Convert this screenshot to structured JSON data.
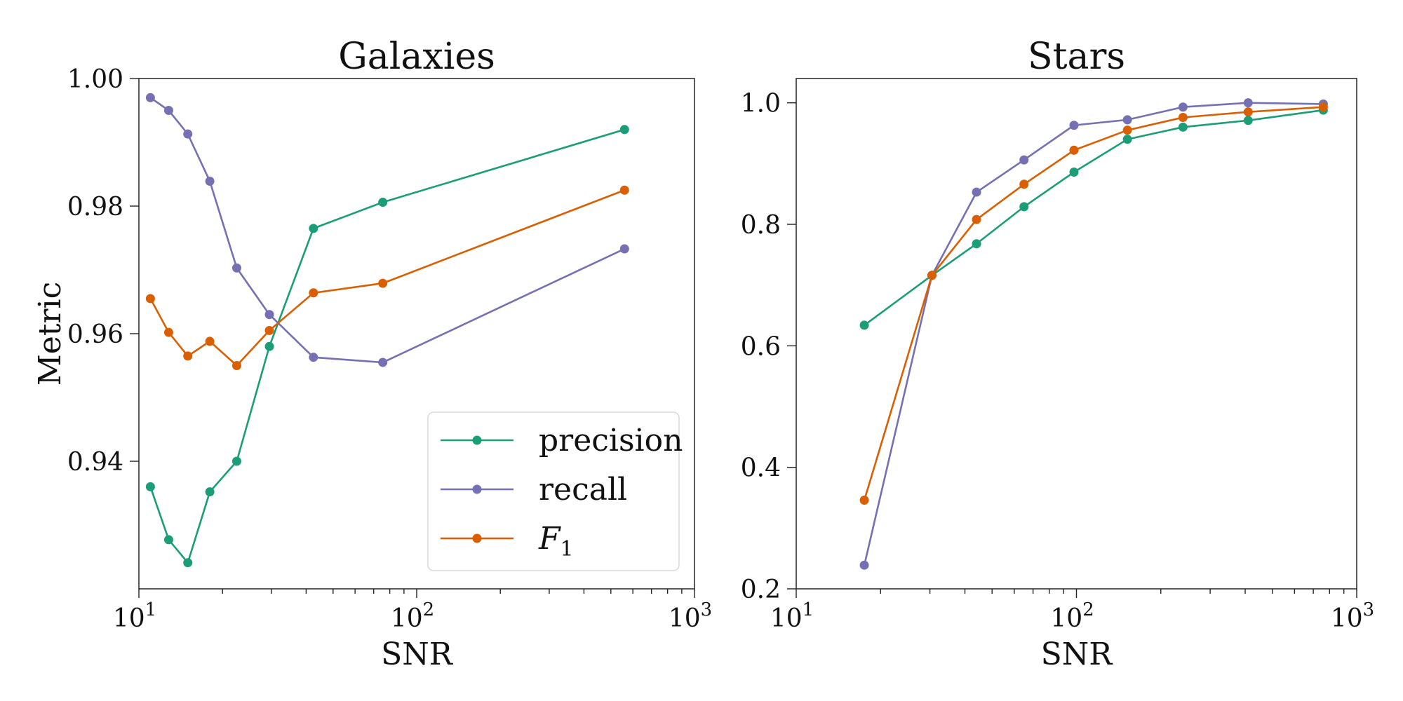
{
  "chart_data": [
    {
      "type": "line",
      "title": "Galaxies",
      "xlabel": "SNR",
      "ylabel": "Metric",
      "xscale": "log",
      "xlim": [
        10,
        1000
      ],
      "ylim": [
        0.92,
        1.0
      ],
      "xticks": [
        {
          "value": 10,
          "base": "10",
          "exp": "1"
        },
        {
          "value": 100,
          "base": "10",
          "exp": "2"
        },
        {
          "value": 1000,
          "base": "10",
          "exp": "3"
        }
      ],
      "yticks": [
        {
          "value": 0.94,
          "label": "0.94"
        },
        {
          "value": 0.96,
          "label": "0.96"
        },
        {
          "value": 0.98,
          "label": "0.98"
        },
        {
          "value": 1.0,
          "label": "1.00"
        }
      ],
      "x": [
        11,
        12.8,
        15,
        18,
        22.5,
        29.5,
        42.5,
        75.5,
        560
      ],
      "series": [
        {
          "name": "precision",
          "color": "#1b9e77",
          "values": [
            0.936,
            0.9277,
            0.9241,
            0.9352,
            0.94,
            0.958,
            0.9765,
            0.9806,
            0.992
          ]
        },
        {
          "name": "recall",
          "color": "#7570b3",
          "values": [
            0.997,
            0.995,
            0.9913,
            0.9839,
            0.9703,
            0.963,
            0.9563,
            0.9555,
            0.9733
          ]
        },
        {
          "name": "F",
          "name_sub": "1",
          "color": "#d95f02",
          "values": [
            0.9655,
            0.9602,
            0.9565,
            0.9588,
            0.955,
            0.9605,
            0.9664,
            0.9679,
            0.9825
          ]
        }
      ],
      "legend": {
        "position": "lower-right"
      }
    },
    {
      "type": "line",
      "title": "Stars",
      "xlabel": "SNR",
      "ylabel": "",
      "xscale": "log",
      "xlim": [
        10,
        1000
      ],
      "ylim": [
        0.2,
        1.04
      ],
      "xticks": [
        {
          "value": 10,
          "base": "10",
          "exp": "1"
        },
        {
          "value": 100,
          "base": "10",
          "exp": "2"
        },
        {
          "value": 1000,
          "base": "10",
          "exp": "3"
        }
      ],
      "yticks": [
        {
          "value": 0.2,
          "label": "0.2"
        },
        {
          "value": 0.4,
          "label": "0.4"
        },
        {
          "value": 0.6,
          "label": "0.6"
        },
        {
          "value": 0.8,
          "label": "0.8"
        },
        {
          "value": 1.0,
          "label": "1.0"
        }
      ],
      "x": [
        17.5,
        30.5,
        44,
        65,
        98,
        152,
        240,
        410,
        760
      ],
      "series": [
        {
          "name": "precision",
          "color": "#1b9e77",
          "values": [
            0.634,
            0.716,
            0.768,
            0.829,
            0.886,
            0.94,
            0.96,
            0.971,
            0.988
          ]
        },
        {
          "name": "recall",
          "color": "#7570b3",
          "values": [
            0.239,
            0.716,
            0.853,
            0.906,
            0.963,
            0.972,
            0.993,
            1.0,
            0.998
          ]
        },
        {
          "name": "F",
          "name_sub": "1",
          "color": "#d95f02",
          "values": [
            0.346,
            0.716,
            0.808,
            0.866,
            0.922,
            0.955,
            0.976,
            0.985,
            0.993
          ]
        }
      ]
    }
  ]
}
